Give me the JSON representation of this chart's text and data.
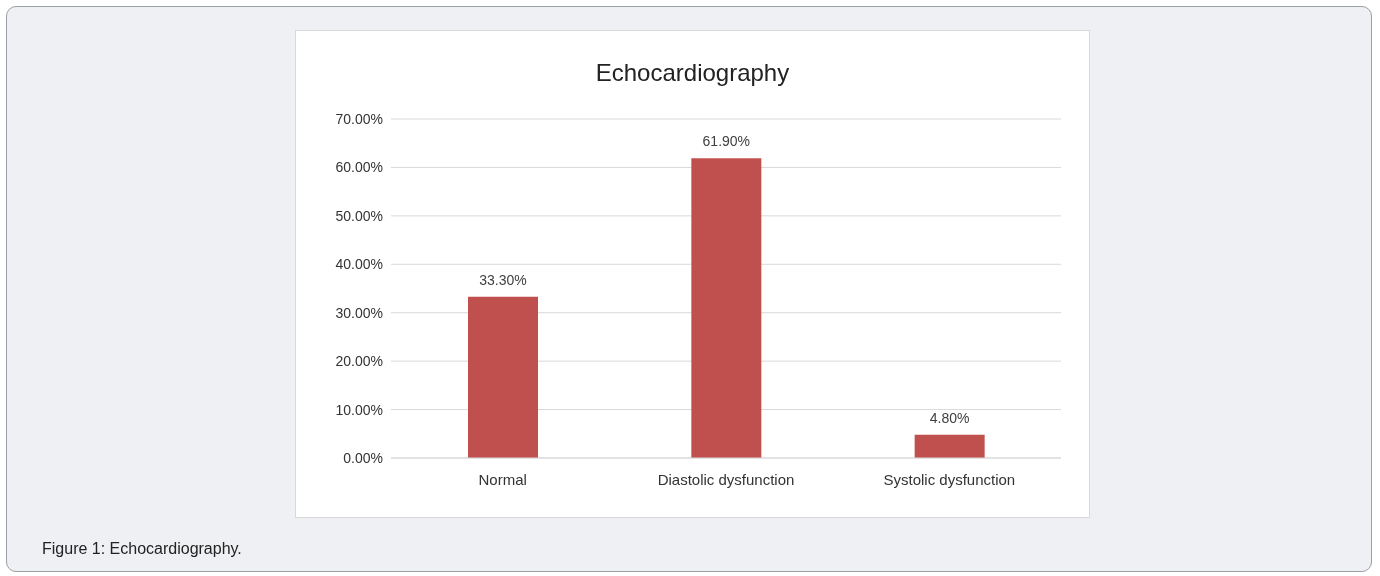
{
  "chart_data": {
    "type": "bar",
    "title": "Echocardiography",
    "categories": [
      "Normal",
      "Diastolic dysfunction",
      "Systolic dysfunction"
    ],
    "values": [
      33.3,
      61.9,
      4.8
    ],
    "color": "#c0504d",
    "value_labels": [
      "33.30%",
      "61.90%",
      "4.80%"
    ],
    "ylim": [
      0,
      70
    ],
    "yticks": [
      {
        "value": 0,
        "label": "0.00%"
      },
      {
        "value": 10,
        "label": "10.00%"
      },
      {
        "value": 20,
        "label": "20.00%"
      },
      {
        "value": 30,
        "label": "30.00%"
      },
      {
        "value": 40,
        "label": "40.00%"
      },
      {
        "value": 50,
        "label": "50.00%"
      },
      {
        "value": 60,
        "label": "60.00%"
      },
      {
        "value": 70,
        "label": "70.00%"
      }
    ],
    "grid": "y",
    "annotations": [
      "Figure 1: Echocardiography."
    ]
  }
}
